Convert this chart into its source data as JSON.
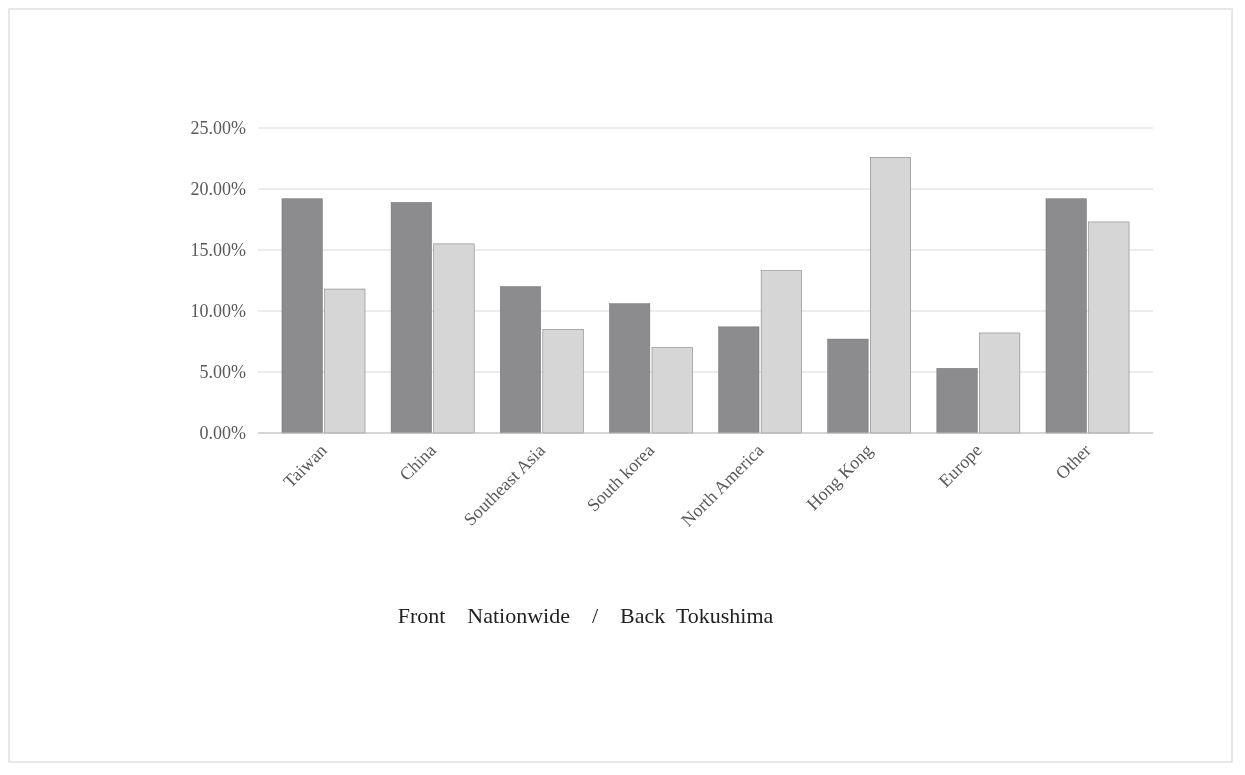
{
  "chart_data": {
    "type": "bar",
    "xlabel": "Front　Nationwide　/　Back  Tokushima",
    "categories": [
      "Taiwan",
      "China",
      "Southeast Asia",
      "South korea",
      "North America",
      "Hong Kong",
      "Europe",
      "Other"
    ],
    "series": [
      {
        "color": "#8c8c8e",
        "values": [
          19.2,
          18.9,
          12.0,
          10.6,
          8.7,
          7.7,
          5.3,
          19.2
        ]
      },
      {
        "color": "#d6d6d6",
        "values": [
          11.8,
          15.5,
          8.5,
          7.0,
          13.3,
          22.6,
          8.2,
          17.3
        ]
      }
    ],
    "ylim": [
      0,
      25
    ],
    "yticks": [
      {
        "value": 0,
        "label": "0.00%"
      },
      {
        "value": 5,
        "label": "5.00%"
      },
      {
        "value": 10,
        "label": "10.00%"
      },
      {
        "value": 15,
        "label": "15.00%"
      },
      {
        "value": 20,
        "label": "20.00%"
      },
      {
        "value": 25,
        "label": "25.00%"
      }
    ],
    "grid": "y"
  }
}
